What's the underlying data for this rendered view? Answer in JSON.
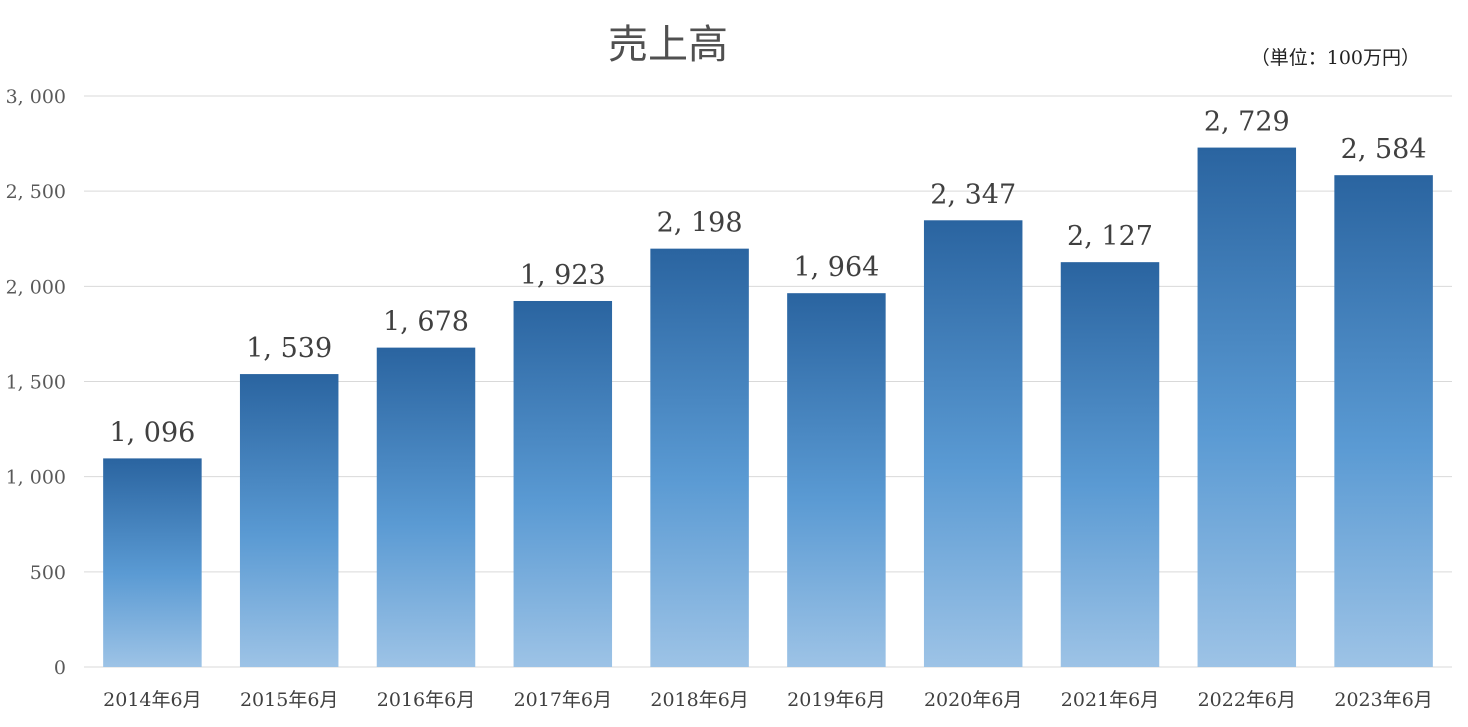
{
  "chart_data": {
    "type": "bar",
    "title": "売上高",
    "unit_label": "（単位：100万円）",
    "xlabel": "",
    "ylabel": "",
    "categories": [
      "2014年6月",
      "2015年6月",
      "2016年6月",
      "2017年6月",
      "2018年6月",
      "2019年6月",
      "2020年6月",
      "2021年6月",
      "2022年6月",
      "2023年6月"
    ],
    "values": [
      1096,
      1539,
      1678,
      1923,
      2198,
      1964,
      2347,
      2127,
      2729,
      2584
    ],
    "value_labels": [
      "1, 096",
      "1, 539",
      "1, 678",
      "1, 923",
      "2, 198",
      "1, 964",
      "2, 347",
      "2, 127",
      "2, 729",
      "2, 584"
    ],
    "ylim": [
      0,
      3000
    ],
    "yticks": [
      0,
      500,
      1000,
      1500,
      2000,
      2500,
      3000
    ],
    "ytick_labels": [
      "0",
      "500",
      "1, 000",
      "1, 500",
      "2, 000",
      "2, 500",
      "3, 000"
    ],
    "grid": true,
    "legend": "none",
    "colors": {
      "bar_top": "#2a64a0",
      "bar_bottom": "#9dc3e6",
      "grid": "#d9d9d9"
    }
  }
}
